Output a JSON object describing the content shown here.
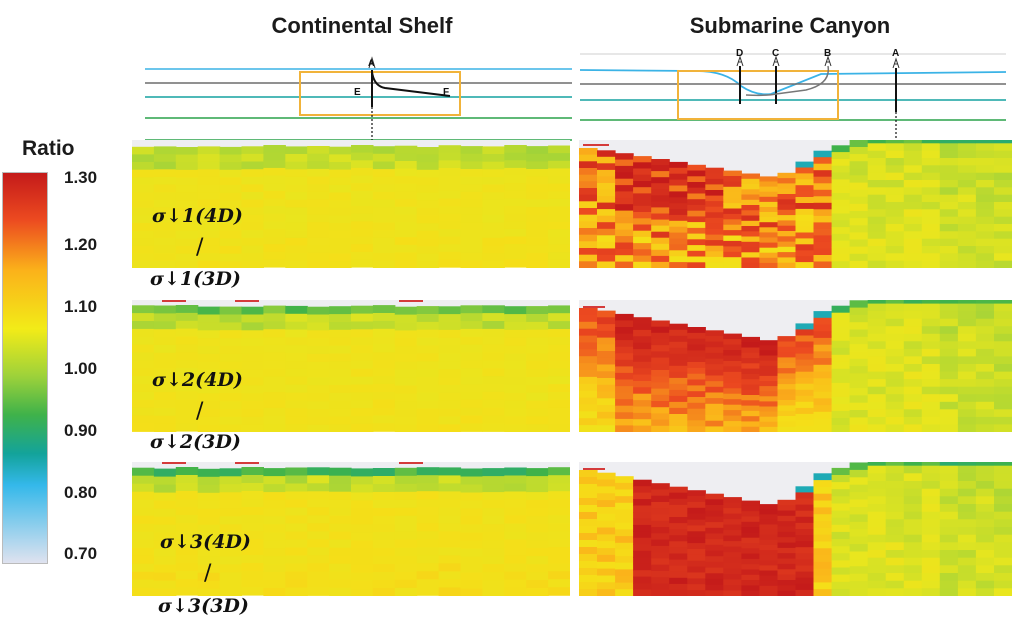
{
  "titles": {
    "shelf": "Continental Shelf",
    "canyon": "Submarine Canyon"
  },
  "colorbar": {
    "title": "Ratio",
    "ticks": [
      "1.30",
      "1.20",
      "1.10",
      "1.00",
      "0.90",
      "0.80",
      "0.70"
    ],
    "stops": [
      "#c41a1a",
      "#ec4a20",
      "#fbb21a",
      "#f2eb18",
      "#9ed23a",
      "#3fb24a",
      "#13a39b",
      "#34b8ea",
      "#dfe2ef"
    ]
  },
  "schematic": {
    "shelf_labels": [
      "A",
      "E",
      "F"
    ],
    "canyon_labels": [
      "D",
      "C",
      "B",
      "A"
    ]
  },
  "rows": [
    {
      "numer": "σ↓1(4D)",
      "slash": "/",
      "denom": "σ↓1(3D)"
    },
    {
      "numer": "σ↓2(4D)",
      "slash": "/",
      "denom": "σ↓2(3D)"
    },
    {
      "numer": "σ↓3(4D)",
      "slash": "/",
      "denom": "σ↓3(3D)"
    }
  ],
  "chart_data": [
    {
      "type": "heatmap",
      "title": "Continental Shelf",
      "rows": [
        "σ↓1(4D) / σ↓1(3D)",
        "σ↓2(4D) / σ↓2(3D)",
        "σ↓3(4D) / σ↓3(3D)"
      ],
      "typical_ratio": [
        1.1,
        1.1,
        1.11
      ],
      "surface_ratio": [
        1.02,
        0.95,
        0.92
      ],
      "range": [
        0.7,
        1.3
      ]
    },
    {
      "type": "heatmap",
      "title": "Submarine Canyon",
      "rows": [
        "σ↓1(4D) / σ↓1(3D)",
        "σ↓2(4D) / σ↓2(3D)",
        "σ↓3(4D) / σ↓3(3D)"
      ],
      "canyon_side_max_ratio": [
        1.3,
        1.3,
        1.3
      ],
      "shelf_side_ratio": [
        1.05,
        1.04,
        1.03
      ],
      "range": [
        0.7,
        1.3
      ]
    }
  ]
}
